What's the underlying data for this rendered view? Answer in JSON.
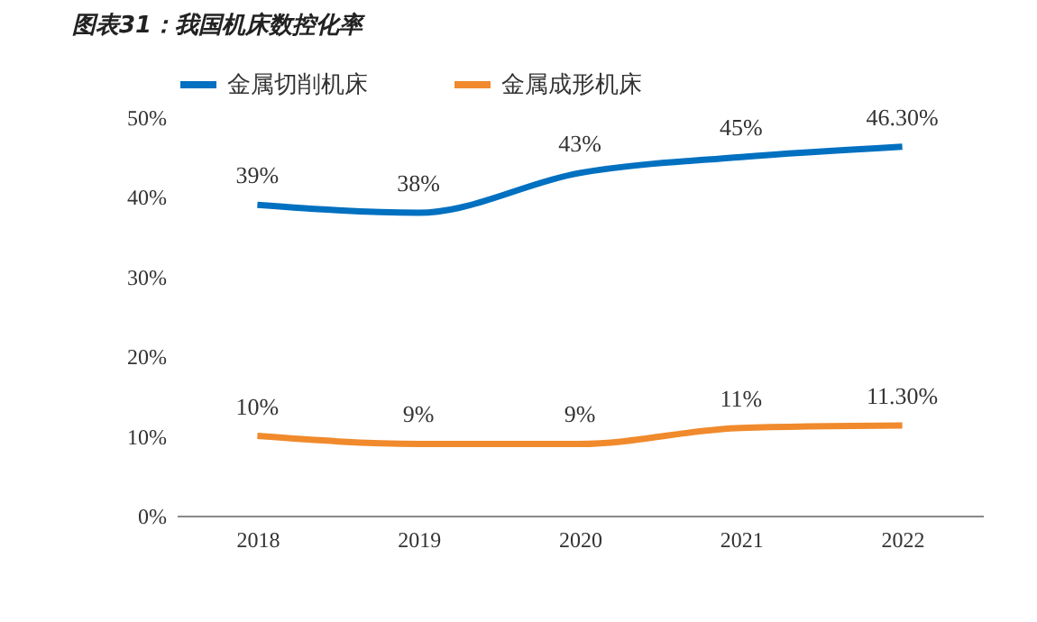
{
  "chart_data": {
    "type": "line",
    "title": "图表31：我国机床数控化率",
    "categories": [
      "2018",
      "2019",
      "2020",
      "2021",
      "2022"
    ],
    "series": [
      {
        "name": "金属切削机床",
        "color": "#0070c0",
        "values": [
          39,
          38,
          43,
          45,
          46.3
        ],
        "value_labels": [
          "39%",
          "38%",
          "43%",
          "45%",
          "46.30%"
        ]
      },
      {
        "name": "金属成形机床",
        "color": "#f08a2c",
        "values": [
          10,
          9,
          9,
          11,
          11.3
        ],
        "value_labels": [
          "10%",
          "9%",
          "9%",
          "11%",
          "11.30%"
        ]
      }
    ],
    "ylim": [
      0,
      50
    ],
    "yticks": [
      {
        "value": 0,
        "label": "0%"
      },
      {
        "value": 10,
        "label": "10%"
      },
      {
        "value": 20,
        "label": "20%"
      },
      {
        "value": 30,
        "label": "30%"
      },
      {
        "value": 40,
        "label": "40%"
      },
      {
        "value": 50,
        "label": "50%"
      }
    ],
    "grid": false,
    "legend": "top",
    "marker": "none",
    "line_style": "solid"
  }
}
